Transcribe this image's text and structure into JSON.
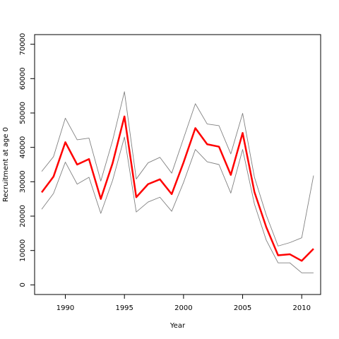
{
  "chart_data": {
    "type": "line",
    "title": "",
    "xlabel": "Year",
    "ylabel": "Recruitment at age 0",
    "xlim": [
      1987.4,
      2011.6
    ],
    "ylim": [
      -2800,
      72800
    ],
    "x_ticks": [
      1990,
      1995,
      2000,
      2005,
      2010
    ],
    "y_ticks": [
      0,
      10000,
      20000,
      30000,
      40000,
      50000,
      60000,
      70000
    ],
    "grid": false,
    "legend": "none",
    "x": [
      1988,
      1989,
      1990,
      1991,
      1992,
      1993,
      1994,
      1995,
      1996,
      1997,
      1998,
      1999,
      2000,
      2001,
      2002,
      2003,
      2004,
      2005,
      2006,
      2007,
      2008,
      2009,
      2010,
      2011
    ],
    "series": [
      {
        "role": "estimate",
        "color": "#ff0000",
        "values": [
          26900,
          31500,
          41500,
          35000,
          36600,
          25000,
          35400,
          49000,
          25500,
          29300,
          30700,
          26400,
          35600,
          45600,
          40900,
          40200,
          32000,
          44200,
          27000,
          16800,
          8600,
          8900,
          7000,
          10500
        ]
      },
      {
        "role": "upper-bound",
        "color": "#808080",
        "values": [
          33000,
          37300,
          48500,
          42200,
          42700,
          30200,
          42000,
          56200,
          30800,
          35500,
          37100,
          32500,
          42600,
          52700,
          46800,
          46300,
          38100,
          49900,
          31300,
          20300,
          11300,
          12300,
          13700,
          31800
        ]
      },
      {
        "role": "lower-bound",
        "color": "#808080",
        "values": [
          22000,
          26600,
          35700,
          29300,
          31300,
          20800,
          30400,
          43000,
          21200,
          24100,
          25500,
          21400,
          29800,
          39400,
          35800,
          35000,
          26700,
          39400,
          23500,
          13000,
          6400,
          6400,
          3500,
          3500
        ]
      }
    ]
  }
}
